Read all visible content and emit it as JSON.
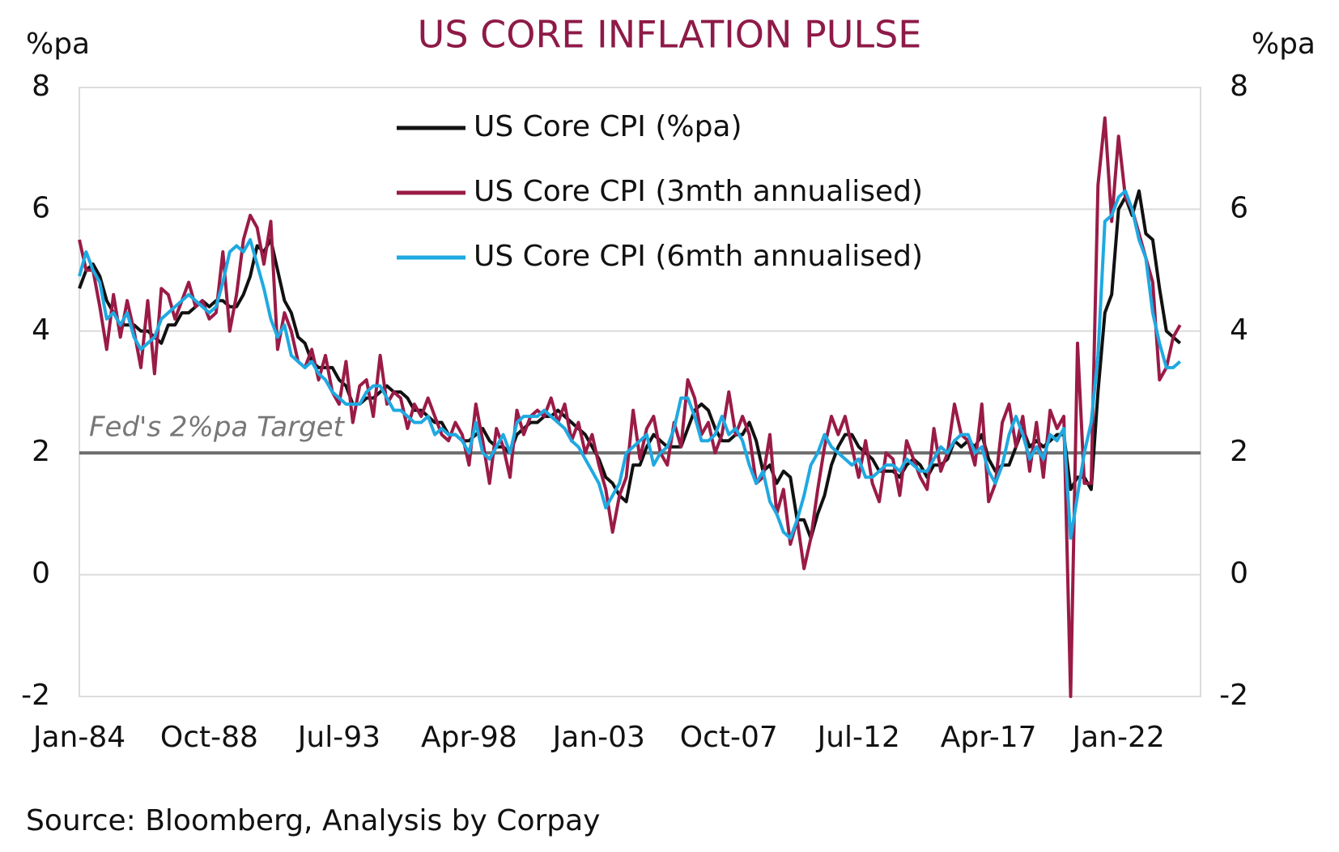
{
  "chart_data": {
    "type": "line",
    "title": "US CORE INFLATION PULSE",
    "y_label": "%pa",
    "y2_label": "%pa",
    "source": "Source: Bloomberg, Analysis by Corpay",
    "annotation": "Fed's 2%pa Target",
    "target_line": 2,
    "ylim": [
      -2,
      8
    ],
    "yticks": [
      -2,
      0,
      2,
      4,
      6,
      8
    ],
    "y2lim": [
      -2,
      8
    ],
    "y2ticks": [
      -2,
      0,
      2,
      4,
      6,
      8
    ],
    "grid": true,
    "legend": "top-center",
    "xticks": [
      "Jan-84",
      "Oct-88",
      "Jul-93",
      "Apr-98",
      "Jan-03",
      "Oct-07",
      "Jul-12",
      "Apr-17",
      "Jan-22"
    ],
    "categories": [
      "Jan-84",
      "Apr-84",
      "Jul-84",
      "Oct-84",
      "Jan-85",
      "Apr-85",
      "Jul-85",
      "Oct-85",
      "Jan-86",
      "Apr-86",
      "Jul-86",
      "Oct-86",
      "Jan-87",
      "Apr-87",
      "Jul-87",
      "Oct-87",
      "Jan-88",
      "Apr-88",
      "Jul-88",
      "Oct-88",
      "Jan-89",
      "Apr-89",
      "Jul-89",
      "Oct-89",
      "Jan-90",
      "Apr-90",
      "Jul-90",
      "Oct-90",
      "Jan-91",
      "Apr-91",
      "Jul-91",
      "Oct-91",
      "Jan-92",
      "Apr-92",
      "Jul-92",
      "Oct-92",
      "Jan-93",
      "Apr-93",
      "Jul-93",
      "Oct-93",
      "Jan-94",
      "Apr-94",
      "Jul-94",
      "Oct-94",
      "Jan-95",
      "Apr-95",
      "Jul-95",
      "Oct-95",
      "Jan-96",
      "Apr-96",
      "Jul-96",
      "Oct-96",
      "Jan-97",
      "Apr-97",
      "Jul-97",
      "Oct-97",
      "Jan-98",
      "Apr-98",
      "Jul-98",
      "Oct-98",
      "Jan-99",
      "Apr-99",
      "Jul-99",
      "Oct-99",
      "Jan-00",
      "Apr-00",
      "Jul-00",
      "Oct-00",
      "Jan-01",
      "Apr-01",
      "Jul-01",
      "Oct-01",
      "Jan-02",
      "Apr-02",
      "Jul-02",
      "Oct-02",
      "Jan-03",
      "Apr-03",
      "Jul-03",
      "Oct-03",
      "Jan-04",
      "Apr-04",
      "Jul-04",
      "Oct-04",
      "Jan-05",
      "Apr-05",
      "Jul-05",
      "Oct-05",
      "Jan-06",
      "Apr-06",
      "Jul-06",
      "Oct-06",
      "Jan-07",
      "Apr-07",
      "Jul-07",
      "Oct-07",
      "Jan-08",
      "Apr-08",
      "Jul-08",
      "Oct-08",
      "Jan-09",
      "Apr-09",
      "Jul-09",
      "Oct-09",
      "Jan-10",
      "Apr-10",
      "Jul-10",
      "Oct-10",
      "Jan-11",
      "Apr-11",
      "Jul-11",
      "Oct-11",
      "Jan-12",
      "Apr-12",
      "Jul-12",
      "Oct-12",
      "Jan-13",
      "Apr-13",
      "Jul-13",
      "Oct-13",
      "Jan-14",
      "Apr-14",
      "Jul-14",
      "Oct-14",
      "Jan-15",
      "Apr-15",
      "Jul-15",
      "Oct-15",
      "Jan-16",
      "Apr-16",
      "Jul-16",
      "Oct-16",
      "Jan-17",
      "Apr-17",
      "Jul-17",
      "Oct-17",
      "Jan-18",
      "Apr-18",
      "Jul-18",
      "Oct-18",
      "Jan-19",
      "Apr-19",
      "Jul-19",
      "Oct-19",
      "Jan-20",
      "Apr-20",
      "Jul-20",
      "Oct-20",
      "Jan-21",
      "Apr-21",
      "Jul-21",
      "Oct-21",
      "Jan-22",
      "Apr-22",
      "Jul-22",
      "Oct-22",
      "Jan-23",
      "Apr-23",
      "Jul-23",
      "Oct-23",
      "Jan-24",
      "Apr-24"
    ],
    "series": [
      {
        "name": "US Core CPI (%pa)",
        "color": "#111111",
        "values": [
          4.7,
          5.0,
          5.1,
          4.9,
          4.5,
          4.3,
          4.1,
          4.1,
          4.1,
          4.0,
          4.0,
          3.9,
          3.8,
          4.1,
          4.1,
          4.3,
          4.3,
          4.4,
          4.5,
          4.4,
          4.5,
          4.5,
          4.4,
          4.4,
          4.6,
          4.9,
          5.4,
          5.3,
          5.5,
          5.0,
          4.5,
          4.3,
          3.9,
          3.8,
          3.5,
          3.4,
          3.4,
          3.4,
          3.2,
          3.1,
          2.8,
          2.8,
          2.9,
          2.9,
          3.0,
          3.1,
          3.0,
          3.0,
          2.9,
          2.7,
          2.7,
          2.6,
          2.5,
          2.5,
          2.3,
          2.3,
          2.2,
          2.2,
          2.3,
          2.4,
          2.2,
          2.1,
          2.1,
          2.0,
          2.3,
          2.4,
          2.5,
          2.5,
          2.6,
          2.6,
          2.7,
          2.6,
          2.5,
          2.4,
          2.3,
          2.1,
          1.9,
          1.6,
          1.5,
          1.3,
          1.2,
          1.8,
          1.8,
          2.1,
          2.3,
          2.2,
          2.1,
          2.1,
          2.1,
          2.4,
          2.7,
          2.8,
          2.7,
          2.4,
          2.2,
          2.2,
          2.3,
          2.3,
          2.5,
          2.2,
          1.7,
          1.8,
          1.5,
          1.7,
          1.6,
          0.9,
          0.9,
          0.6,
          1.0,
          1.3,
          1.8,
          2.1,
          2.3,
          2.3,
          2.1,
          2.0,
          1.9,
          1.7,
          1.7,
          1.7,
          1.6,
          1.8,
          1.9,
          1.8,
          1.6,
          1.8,
          1.8,
          1.9,
          2.2,
          2.1,
          2.2,
          2.1,
          2.3,
          1.9,
          1.7,
          1.8,
          1.8,
          2.1,
          2.4,
          2.1,
          2.2,
          2.1,
          2.2,
          2.3,
          2.3,
          1.4,
          1.6,
          1.6,
          1.4,
          3.0,
          4.3,
          4.6,
          6.0,
          6.2,
          5.9,
          6.3,
          5.6,
          5.5,
          4.7,
          4.0,
          3.9,
          3.8
        ]
      },
      {
        "name": "US Core CPI (3mth annualised)",
        "color": "#9a1b47",
        "values": [
          5.5,
          5.0,
          5.0,
          4.4,
          3.7,
          4.6,
          3.9,
          4.5,
          4.0,
          3.4,
          4.5,
          3.3,
          4.7,
          4.6,
          4.2,
          4.5,
          4.8,
          4.4,
          4.5,
          4.2,
          4.3,
          5.3,
          4.0,
          4.6,
          5.5,
          5.9,
          5.7,
          5.1,
          5.8,
          3.7,
          4.3,
          4.0,
          3.5,
          3.4,
          3.7,
          3.2,
          3.6,
          3.0,
          2.8,
          3.5,
          2.5,
          3.1,
          3.2,
          2.6,
          3.6,
          2.8,
          3.0,
          2.9,
          2.4,
          2.8,
          2.6,
          2.9,
          2.6,
          2.3,
          2.2,
          2.5,
          2.3,
          1.8,
          2.8,
          2.2,
          1.5,
          2.4,
          2.1,
          1.6,
          2.7,
          2.3,
          2.6,
          2.7,
          2.6,
          2.9,
          2.5,
          2.8,
          2.2,
          2.5,
          2.0,
          2.3,
          1.8,
          1.4,
          0.7,
          1.3,
          1.6,
          2.7,
          1.9,
          2.4,
          2.6,
          2.0,
          1.8,
          2.5,
          2.1,
          3.2,
          2.9,
          2.3,
          2.5,
          2.0,
          2.3,
          3.0,
          2.3,
          2.6,
          2.3,
          1.5,
          1.6,
          2.3,
          1.0,
          1.4,
          0.5,
          0.9,
          0.1,
          0.6,
          1.4,
          2.1,
          2.6,
          2.3,
          2.6,
          2.1,
          1.6,
          2.2,
          1.5,
          1.2,
          2.0,
          1.9,
          1.3,
          2.2,
          1.9,
          1.6,
          1.4,
          2.4,
          1.7,
          2.0,
          2.8,
          2.3,
          2.2,
          1.8,
          2.8,
          1.2,
          1.5,
          2.5,
          2.8,
          2.1,
          2.6,
          1.7,
          2.5,
          1.6,
          2.7,
          2.4,
          2.6,
          -2.0,
          3.8,
          1.5,
          1.5,
          6.4,
          7.5,
          5.8,
          7.2,
          6.2,
          6.0,
          5.6,
          5.2,
          4.8,
          3.2,
          3.4,
          3.9,
          4.1
        ]
      },
      {
        "name": "US Core CPI (6mth annualised)",
        "color": "#1fa9e1",
        "values": [
          4.9,
          5.3,
          5.0,
          4.8,
          4.2,
          4.3,
          4.1,
          4.3,
          3.9,
          3.7,
          3.8,
          3.9,
          4.2,
          4.3,
          4.4,
          4.5,
          4.6,
          4.5,
          4.4,
          4.3,
          4.4,
          4.8,
          5.3,
          5.4,
          5.3,
          5.5,
          5.1,
          4.7,
          4.2,
          3.9,
          4.1,
          3.6,
          3.5,
          3.4,
          3.5,
          3.3,
          3.2,
          3.0,
          2.9,
          2.8,
          2.8,
          2.8,
          3.0,
          3.1,
          3.1,
          2.9,
          2.7,
          2.7,
          2.6,
          2.5,
          2.5,
          2.6,
          2.3,
          2.4,
          2.3,
          2.3,
          2.2,
          2.0,
          2.5,
          2.0,
          1.9,
          2.1,
          2.3,
          2.0,
          2.5,
          2.6,
          2.6,
          2.6,
          2.7,
          2.6,
          2.5,
          2.4,
          2.2,
          2.1,
          1.9,
          1.7,
          1.5,
          1.1,
          1.3,
          1.5,
          2.0,
          2.1,
          2.2,
          2.3,
          1.8,
          2.0,
          2.1,
          2.4,
          2.9,
          2.9,
          2.6,
          2.2,
          2.2,
          2.3,
          2.6,
          2.3,
          2.4,
          2.2,
          1.8,
          1.5,
          1.7,
          1.2,
          1.0,
          0.7,
          0.6,
          0.9,
          1.3,
          1.8,
          2.0,
          2.3,
          2.1,
          2.0,
          1.9,
          1.8,
          1.9,
          1.6,
          1.6,
          1.7,
          1.8,
          1.8,
          1.7,
          1.9,
          1.8,
          1.7,
          1.7,
          1.9,
          2.1,
          2.0,
          2.2,
          2.3,
          2.3,
          2.0,
          2.1,
          1.7,
          1.5,
          1.8,
          2.3,
          2.6,
          2.3,
          1.9,
          2.1,
          1.9,
          2.3,
          2.2,
          2.4,
          0.6,
          1.3,
          2.0,
          2.5,
          3.6,
          5.8,
          5.9,
          6.2,
          6.3,
          6.0,
          5.5,
          5.2,
          4.3,
          3.8,
          3.4,
          3.4,
          3.5
        ]
      }
    ]
  }
}
